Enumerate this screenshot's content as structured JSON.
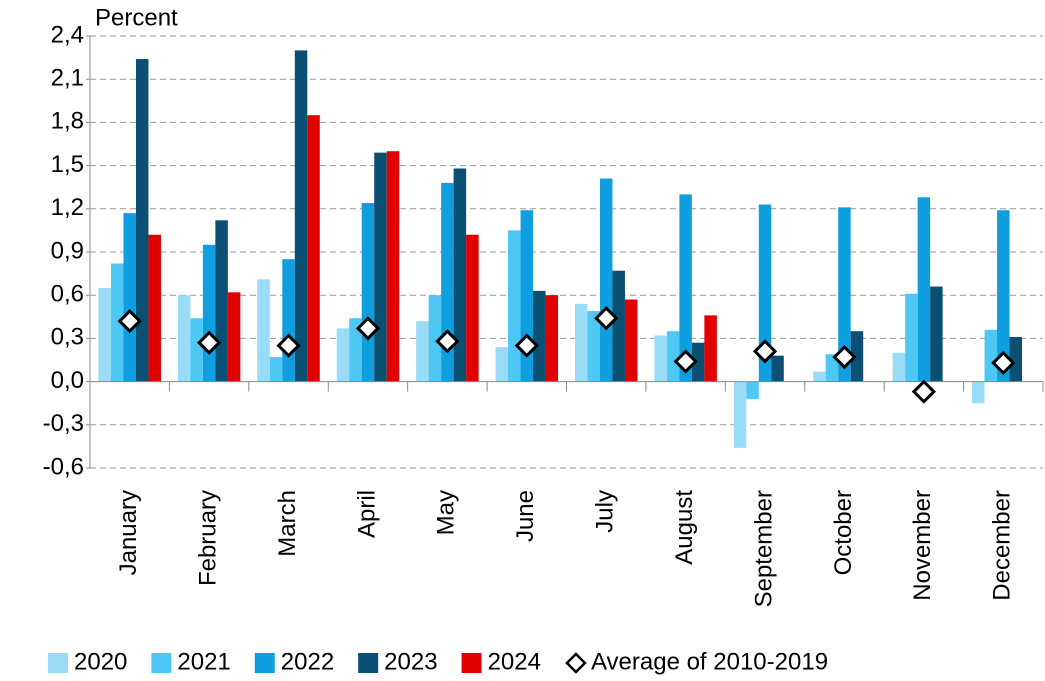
{
  "chart_data": {
    "type": "bar",
    "ylabel": "Percent",
    "categories": [
      "January",
      "February",
      "March",
      "April",
      "May",
      "June",
      "July",
      "August",
      "September",
      "October",
      "November",
      "December"
    ],
    "series": [
      {
        "name": "2020",
        "color": "#99dcf7",
        "values": [
          0.65,
          0.6,
          0.71,
          0.37,
          0.42,
          0.24,
          0.54,
          0.32,
          -0.46,
          0.07,
          0.2,
          -0.15
        ]
      },
      {
        "name": "2021",
        "color": "#4dc8f4",
        "values": [
          0.82,
          0.44,
          0.17,
          0.44,
          0.6,
          1.05,
          0.49,
          0.35,
          -0.12,
          0.19,
          0.61,
          0.36
        ]
      },
      {
        "name": "2022",
        "color": "#0f9ee0",
        "values": [
          1.17,
          0.95,
          0.85,
          1.24,
          1.38,
          1.19,
          1.41,
          1.3,
          1.23,
          1.21,
          1.28,
          1.19
        ]
      },
      {
        "name": "2023",
        "color": "#0b4f73",
        "values": [
          2.24,
          1.12,
          2.3,
          1.59,
          1.48,
          0.63,
          0.77,
          0.27,
          0.18,
          0.35,
          0.66,
          0.31
        ]
      },
      {
        "name": "2024",
        "color": "#e00000",
        "values": [
          1.02,
          0.62,
          1.85,
          1.6,
          1.02,
          0.6,
          0.57,
          0.46,
          null,
          null,
          null,
          null
        ]
      },
      {
        "name": "Average of 2010-2019",
        "color": "#ffffff",
        "marker": "diamond",
        "values": [
          0.42,
          0.27,
          0.25,
          0.37,
          0.28,
          0.25,
          0.44,
          0.14,
          0.21,
          0.17,
          -0.07,
          0.13
        ]
      }
    ],
    "ylim": [
      -0.6,
      2.4
    ],
    "yticks": [
      {
        "value": -0.6,
        "label": "-0,6"
      },
      {
        "value": -0.3,
        "label": "-0,3"
      },
      {
        "value": 0,
        "label": "0,0"
      },
      {
        "value": 0.3,
        "label": "0,3"
      },
      {
        "value": 0.6,
        "label": "0,6"
      },
      {
        "value": 0.9,
        "label": "0,9"
      },
      {
        "value": 1.2,
        "label": "1,2"
      },
      {
        "value": 1.5,
        "label": "1,5"
      },
      {
        "value": 1.8,
        "label": "1,8"
      },
      {
        "value": 2.1,
        "label": "2,1"
      },
      {
        "value": 2.4,
        "label": "2,4"
      }
    ],
    "grid": true
  }
}
